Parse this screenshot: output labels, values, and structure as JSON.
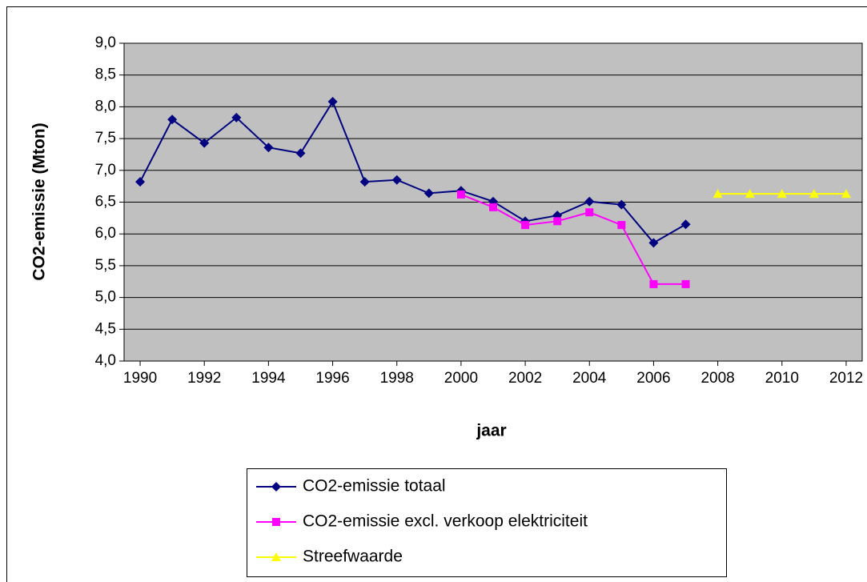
{
  "chart_data": {
    "type": "line",
    "x_label": "jaar",
    "y_label": "CO2-emissie (Mton)",
    "x": [
      1990,
      1991,
      1992,
      1993,
      1994,
      1995,
      1996,
      1997,
      1998,
      1999,
      2000,
      2001,
      2002,
      2003,
      2004,
      2005,
      2006,
      2007,
      2008,
      2009,
      2010,
      2011,
      2012
    ],
    "series": [
      {
        "name": "CO2-emissie totaal",
        "color": "#000080",
        "marker": "diamond",
        "values": [
          6.82,
          7.8,
          7.43,
          7.83,
          7.36,
          7.27,
          8.08,
          6.82,
          6.85,
          6.64,
          6.68,
          6.51,
          6.2,
          6.29,
          6.51,
          6.46,
          5.86,
          6.15,
          null,
          null,
          null,
          null,
          null
        ]
      },
      {
        "name": "CO2-emissie excl. verkoop elektriciteit",
        "color": "#ff00ff",
        "marker": "square",
        "values": [
          null,
          null,
          null,
          null,
          null,
          null,
          null,
          null,
          null,
          null,
          6.62,
          6.42,
          6.14,
          6.2,
          6.34,
          6.14,
          5.21,
          5.21,
          null,
          null,
          null,
          null,
          null
        ]
      },
      {
        "name": "Streefwaarde",
        "color": "#ffff00",
        "marker": "triangle",
        "values": [
          null,
          null,
          null,
          null,
          null,
          null,
          null,
          null,
          null,
          null,
          null,
          null,
          null,
          null,
          null,
          null,
          null,
          null,
          6.63,
          6.63,
          6.63,
          6.63,
          6.63
        ]
      }
    ],
    "xlim": [
      1989.5,
      2012.5
    ],
    "xticks": [
      1990,
      1992,
      1994,
      1996,
      1998,
      2000,
      2002,
      2004,
      2006,
      2008,
      2010,
      2012
    ],
    "ylim": [
      4,
      9
    ],
    "yticks": [
      {
        "value": 4,
        "label": "4,0"
      },
      {
        "value": 4.5,
        "label": "4,5"
      },
      {
        "value": 5,
        "label": "5,0"
      },
      {
        "value": 5.5,
        "label": "5,5"
      },
      {
        "value": 6,
        "label": "6,0"
      },
      {
        "value": 6.5,
        "label": "6,5"
      },
      {
        "value": 7,
        "label": "7,0"
      },
      {
        "value": 7.5,
        "label": "7,5"
      },
      {
        "value": 8,
        "label": "8,0"
      },
      {
        "value": 8.5,
        "label": "8,5"
      },
      {
        "value": 9,
        "label": "9,0"
      }
    ],
    "grid": true,
    "plot_background": "#c0c0c0",
    "legend": "bottom"
  }
}
